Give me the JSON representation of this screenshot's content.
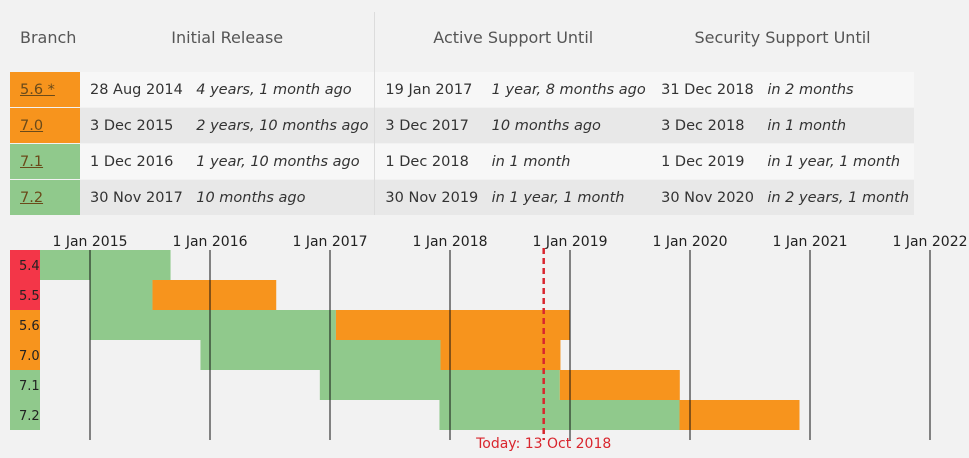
{
  "table": {
    "headers": {
      "branch": "Branch",
      "initial": "Initial Release",
      "active": "Active Support Until",
      "security": "Security Support Until"
    },
    "rows": [
      {
        "branch": "5.6",
        "marker": " *",
        "status": "security",
        "initial_date": "28 Aug 2014",
        "initial_rel": "4 years, 1 month ago",
        "active_date": "19 Jan 2017",
        "active_rel": "1 year, 8 months ago",
        "security_date": "31 Dec 2018",
        "security_rel": "in 2 months"
      },
      {
        "branch": "7.0",
        "marker": "",
        "status": "security",
        "initial_date": "3 Dec 2015",
        "initial_rel": "2 years, 10 months ago",
        "active_date": "3 Dec 2017",
        "active_rel": "10 months ago",
        "security_date": "3 Dec 2018",
        "security_rel": "in 1 month"
      },
      {
        "branch": "7.1",
        "marker": "",
        "status": "active",
        "initial_date": "1 Dec 2016",
        "initial_rel": "1 year, 10 months ago",
        "active_date": "1 Dec 2018",
        "active_rel": "in 1 month",
        "security_date": "1 Dec 2019",
        "security_rel": "in 1 year, 1 month"
      },
      {
        "branch": "7.2",
        "marker": "",
        "status": "active",
        "initial_date": "30 Nov 2017",
        "initial_rel": "10 months ago",
        "active_date": "30 Nov 2019",
        "active_rel": "in 1 year, 1 month",
        "security_date": "30 Nov 2020",
        "security_rel": "in 2 years, 1 month"
      }
    ]
  },
  "timeline": {
    "x_ticks": [
      "1 Jan 2015",
      "1 Jan 2016",
      "1 Jan 2017",
      "1 Jan 2018",
      "1 Jan 2019",
      "1 Jan 2020",
      "1 Jan 2021",
      "1 Jan 2022"
    ],
    "today_label": "Today: 13 Oct 2018",
    "today": "2018-10-13",
    "branches": [
      {
        "name": "5.4",
        "label_status": "eol",
        "start": "2014-07-01",
        "active_end": "2015-09-03",
        "security_end": "2015-09-03"
      },
      {
        "name": "5.5",
        "label_status": "eol",
        "start": "2015-01-01",
        "active_end": "2015-07-10",
        "security_end": "2016-07-21"
      },
      {
        "name": "5.6",
        "label_status": "security",
        "start": "2015-01-01",
        "active_end": "2017-01-19",
        "security_end": "2018-12-31"
      },
      {
        "name": "7.0",
        "label_status": "security",
        "start": "2015-12-03",
        "active_end": "2017-12-03",
        "security_end": "2018-12-03"
      },
      {
        "name": "7.1",
        "label_status": "active",
        "start": "2016-12-01",
        "active_end": "2018-12-01",
        "security_end": "2019-12-01"
      },
      {
        "name": "7.2",
        "label_status": "active",
        "start": "2017-11-30",
        "active_end": "2019-11-30",
        "security_end": "2020-11-30"
      }
    ]
  },
  "colors": {
    "security": "#f7941d",
    "active": "#90c98c",
    "eol": "#f33648",
    "today": "#d9262e"
  }
}
